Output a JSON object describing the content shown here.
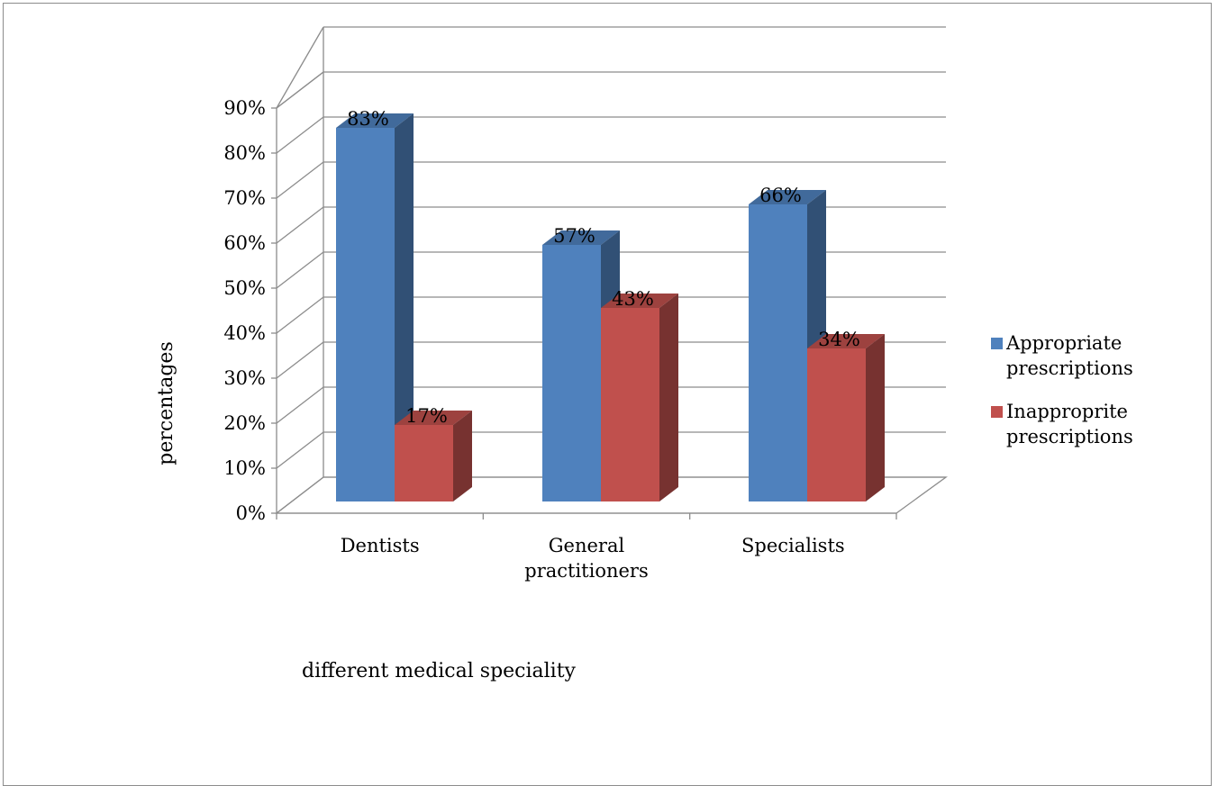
{
  "chart_data": {
    "type": "bar",
    "style": "3d-clustered-column",
    "categories": [
      "Dentists",
      "General practitioners",
      "Specialists"
    ],
    "series": [
      {
        "name": "Appropriate prescriptions",
        "values": [
          83,
          57,
          66
        ],
        "labels": [
          "83%",
          "57%",
          "66%"
        ],
        "color": "#4f81bd"
      },
      {
        "name": "Inapproprite prescriptions",
        "values": [
          17,
          43,
          34
        ],
        "labels": [
          "17%",
          "43%",
          "34%"
        ],
        "color": "#c0504d"
      }
    ],
    "ylabel": "percentages",
    "xlabel": "different medical speciality",
    "ylim": [
      0,
      90
    ],
    "yticks": [
      "0%",
      "10%",
      "20%",
      "30%",
      "40%",
      "50%",
      "60%",
      "70%",
      "80%",
      "90%"
    ],
    "grid": true,
    "legend": "right"
  }
}
